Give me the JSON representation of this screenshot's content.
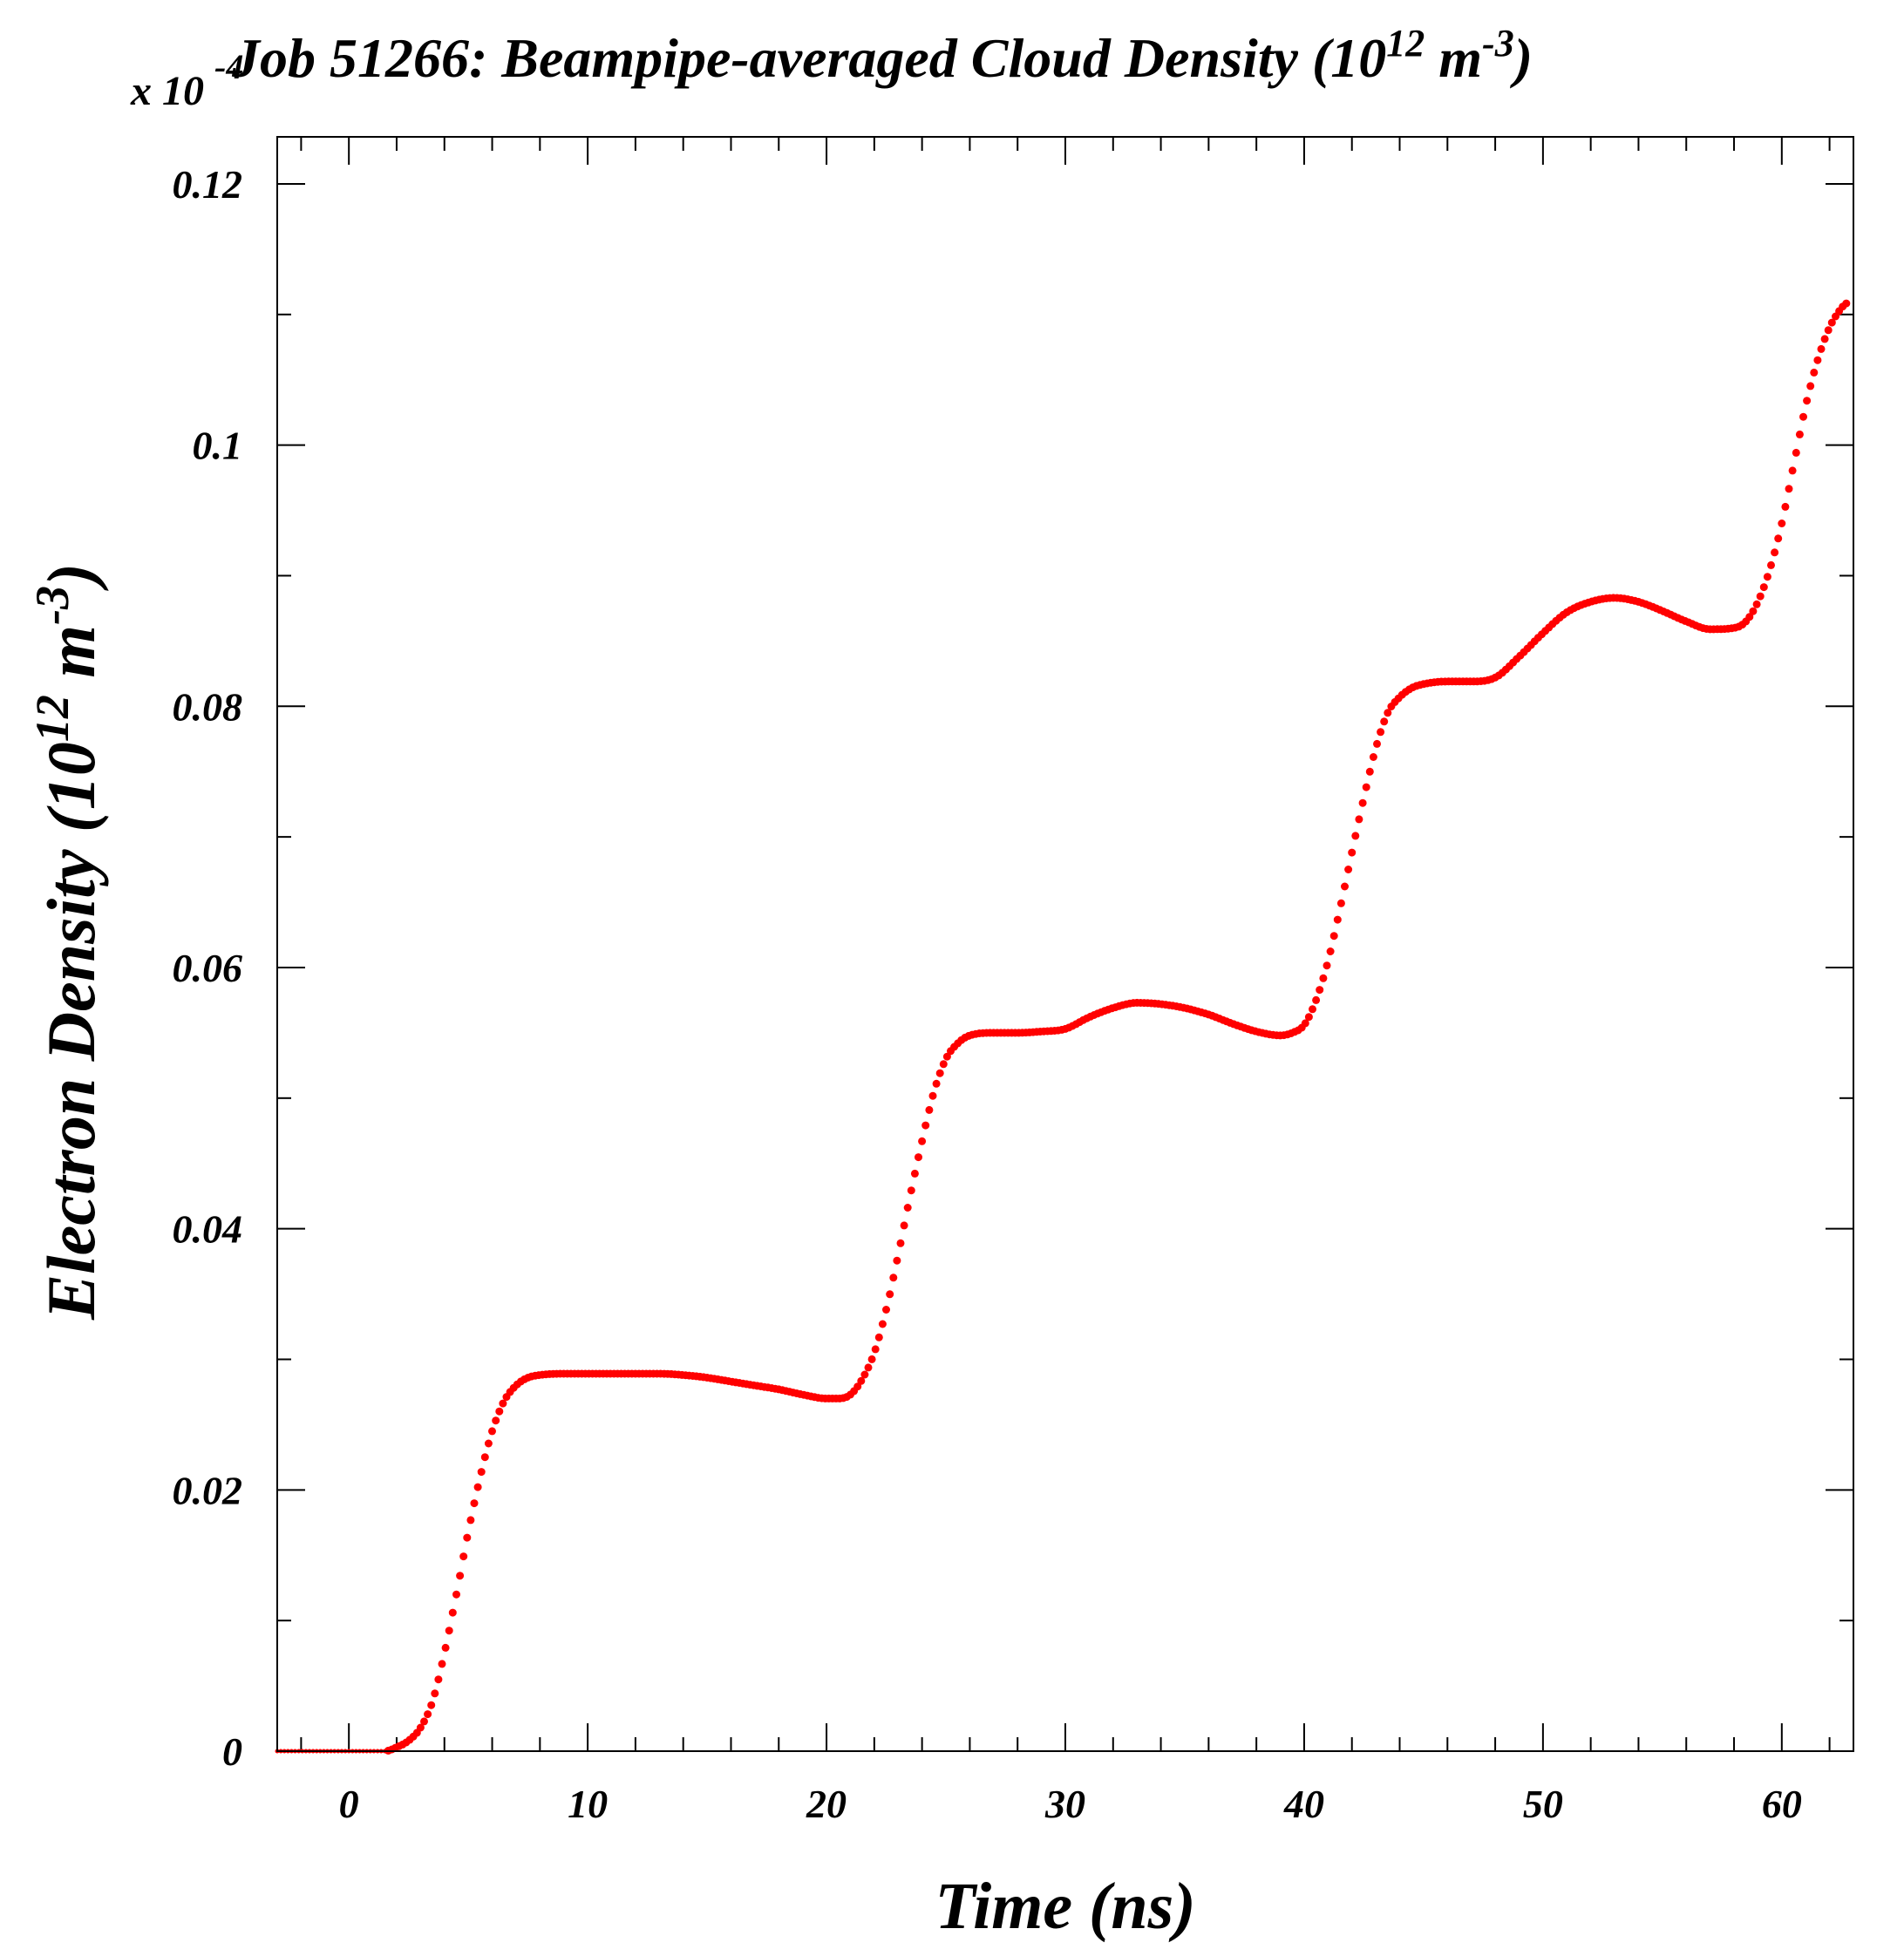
{
  "chart_data": {
    "type": "scatter",
    "title_main": "Job 51266: Beampipe-averaged Cloud Density (10",
    "title_exp": "12",
    "title_unit": " m",
    "title_unit_exp": "-3",
    "title_close": ")",
    "xlabel": "Time (ns)",
    "ylabel_main": "Electron Density (10",
    "ylabel_exp": "12",
    "ylabel_unit": " m",
    "ylabel_unit_exp": "-3",
    "ylabel_close": ")",
    "multiplier_prefix": "x 10",
    "multiplier_exp": "-4",
    "xlim": [
      -3,
      63
    ],
    "ylim": [
      0,
      0.1236
    ],
    "x_ticks": [
      0,
      10,
      20,
      30,
      40,
      50,
      60
    ],
    "x_tick_labels": [
      "0",
      "10",
      "20",
      "30",
      "40",
      "50",
      "60"
    ],
    "y_ticks": [
      0,
      0.02,
      0.04,
      0.06,
      0.08,
      0.1,
      0.12
    ],
    "y_tick_labels": [
      "0",
      "0.02",
      "0.04",
      "0.06",
      "0.08",
      "0.1",
      "0.12"
    ],
    "grid": false,
    "marker_color": "#ff0000",
    "series": [
      {
        "x": [
          -3,
          0,
          1.5,
          2.0,
          2.5,
          3.0,
          3.5,
          4.0,
          4.5,
          5.0,
          5.5,
          6.0,
          6.5,
          7.0,
          7.5,
          8.0,
          9.0,
          10.0,
          11.0,
          12.0,
          13.0,
          14.0,
          15.0,
          16.0,
          17.0,
          18.0,
          19.0,
          20.0,
          20.5,
          21.0,
          21.5,
          22.0,
          22.5,
          23.0,
          23.5,
          24.0,
          24.5,
          25.0,
          25.5,
          26.0,
          27.0,
          28.0,
          29.0,
          30.0,
          31.0,
          32.0,
          33.0,
          34.0,
          35.0,
          36.0,
          37.0,
          38.0,
          39.0,
          39.5,
          40.0,
          40.5,
          41.0,
          41.5,
          42.0,
          42.5,
          43.0,
          43.5,
          44.0,
          44.5,
          45.0,
          46.0,
          47.0,
          48.0,
          49.0,
          50.0,
          51.0,
          52.0,
          53.0,
          54.0,
          55.0,
          56.0,
          57.0,
          58.0,
          58.5,
          59.0,
          59.5,
          60.0,
          60.5,
          61.0,
          61.5,
          62.0,
          62.5,
          62.8
        ],
        "y": [
          0,
          0,
          0,
          0.0003,
          0.0008,
          0.0018,
          0.0038,
          0.0075,
          0.012,
          0.0168,
          0.021,
          0.0245,
          0.0268,
          0.028,
          0.0286,
          0.0288,
          0.0289,
          0.0289,
          0.0289,
          0.0289,
          0.0289,
          0.0288,
          0.0286,
          0.0283,
          0.028,
          0.0277,
          0.0273,
          0.027,
          0.027,
          0.0273,
          0.0285,
          0.0305,
          0.0338,
          0.038,
          0.0425,
          0.0467,
          0.0505,
          0.053,
          0.0542,
          0.0548,
          0.055,
          0.055,
          0.0551,
          0.0553,
          0.0562,
          0.0569,
          0.0573,
          0.0572,
          0.0569,
          0.0564,
          0.0557,
          0.0551,
          0.0548,
          0.055,
          0.0556,
          0.0575,
          0.0605,
          0.0645,
          0.0688,
          0.073,
          0.0768,
          0.0795,
          0.0807,
          0.0814,
          0.0817,
          0.0819,
          0.0819,
          0.0822,
          0.0838,
          0.0856,
          0.0872,
          0.088,
          0.0883,
          0.088,
          0.0873,
          0.0865,
          0.0859,
          0.086,
          0.0865,
          0.088,
          0.0905,
          0.094,
          0.0985,
          0.103,
          0.1065,
          0.109,
          0.1105,
          0.111
        ]
      }
    ]
  }
}
